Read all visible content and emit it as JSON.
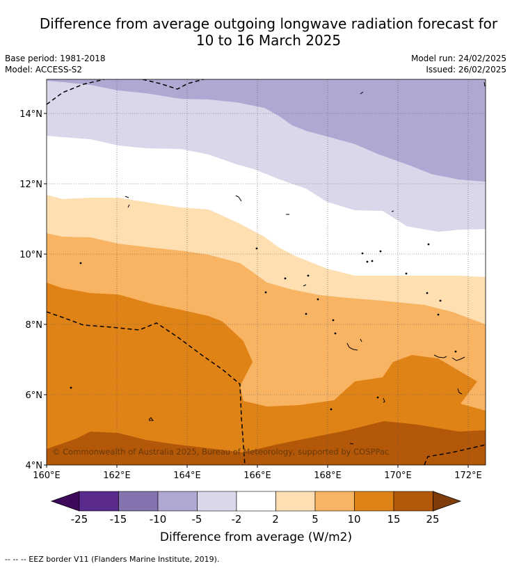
{
  "title_line1": "Difference from average outgoing longwave radiation forecast for",
  "title_line2": "10 to 16 March 2025",
  "base_period": "Base period: 1981-2018",
  "model": "Model: ACCESS-S2",
  "model_run": "Model run: 24/02/2025",
  "issued": "Issued: 26/02/2025",
  "copyright": "© Commonwealth of Australia 2025, Bureau of Meteorology, supported by COSPPac",
  "lon_ticks": [
    "160°E",
    "162°E",
    "164°E",
    "166°E",
    "168°E",
    "170°E",
    "172°E"
  ],
  "lat_ticks": [
    "14°N",
    "12°N",
    "10°N",
    "8°N",
    "6°N",
    "4°N"
  ],
  "colorbar": {
    "title": "Difference from average (W/m2)",
    "labels": [
      "-25",
      "-15",
      "-10",
      "-5",
      "-2",
      "2",
      "5",
      "10",
      "15",
      "25"
    ],
    "colors": [
      "#3d0a5c",
      "#5a2a8c",
      "#8573b0",
      "#b0a8d2",
      "#d8d8ea",
      "#ffffff",
      "#fddfb2",
      "#f9b463",
      "#e08316",
      "#b35808",
      "#7f3b08"
    ]
  },
  "footnote": "--  --  -- EEZ border V11 (Flanders Marine Institute, 2019)."
}
